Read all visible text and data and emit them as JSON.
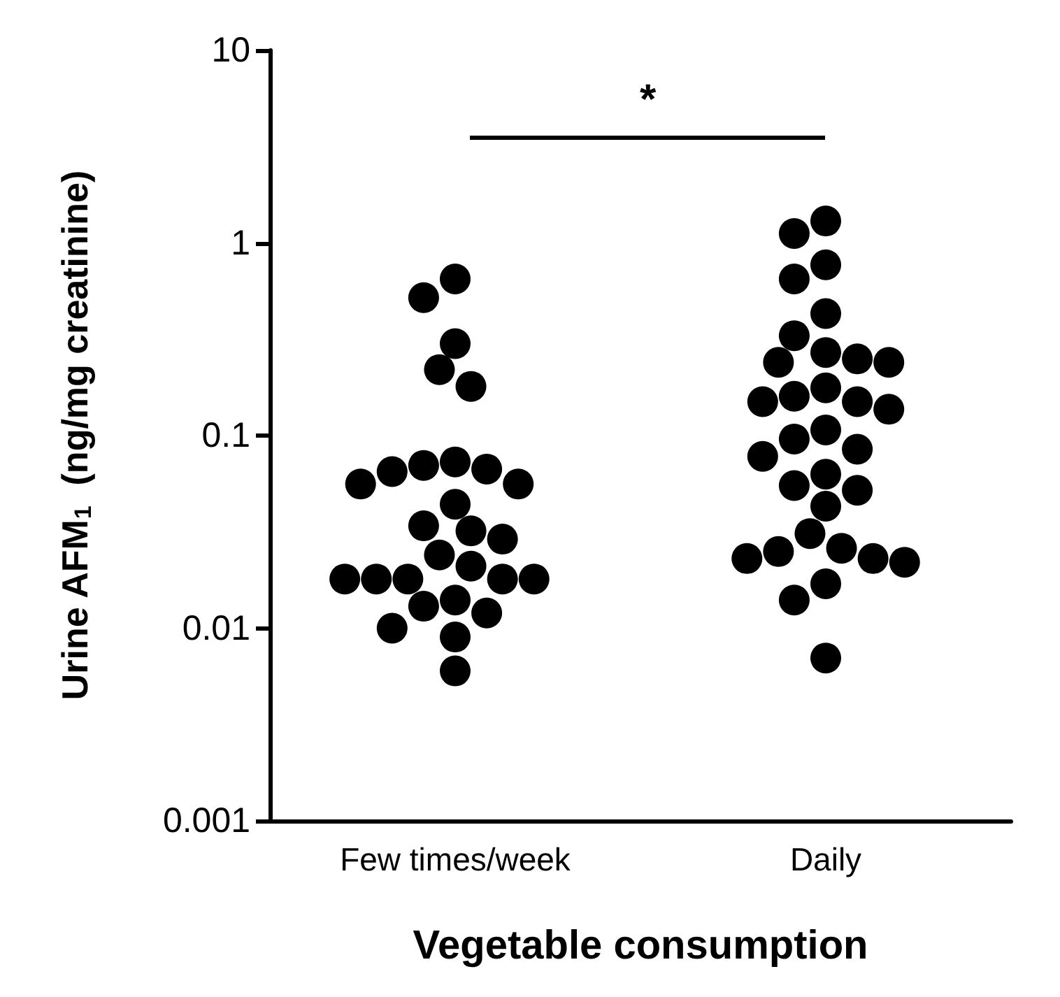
{
  "chart_data": {
    "type": "scatter",
    "xlabel": "Vegetable consumption",
    "ylabel": "Urine AFM$_{1}$  (ng/mg creatinine)",
    "categories": [
      "Few times/week",
      "Daily"
    ],
    "log": "y",
    "ylim": [
      0.001,
      10
    ],
    "yticks": [
      0.001,
      0.01,
      0.1,
      1,
      10
    ],
    "grid": false,
    "marker": "circle",
    "annotations": [
      "*"
    ],
    "series": [
      {
        "color": "#000000",
        "x": [
          "Few times/week",
          "Few times/week",
          "Few times/week",
          "Few times/week",
          "Few times/week",
          "Few times/week",
          "Few times/week",
          "Few times/week",
          "Few times/week",
          "Few times/week",
          "Few times/week",
          "Few times/week",
          "Few times/week",
          "Few times/week",
          "Few times/week",
          "Few times/week",
          "Few times/week",
          "Few times/week",
          "Few times/week",
          "Few times/week",
          "Few times/week",
          "Few times/week",
          "Few times/week",
          "Few times/week",
          "Few times/week",
          "Few times/week",
          "Few times/week",
          "Few times/week"
        ],
        "values": [
          0.65,
          0.52,
          0.3,
          0.22,
          0.18,
          0.073,
          0.067,
          0.065,
          0.07,
          0.056,
          0.056,
          0.044,
          0.032,
          0.029,
          0.034,
          0.024,
          0.021,
          0.018,
          0.018,
          0.018,
          0.018,
          0.018,
          0.014,
          0.013,
          0.012,
          0.01,
          0.009,
          0.006
        ]
      },
      {
        "color": "#000000",
        "x": [
          "Daily",
          "Daily",
          "Daily",
          "Daily",
          "Daily",
          "Daily",
          "Daily",
          "Daily",
          "Daily",
          "Daily",
          "Daily",
          "Daily",
          "Daily",
          "Daily",
          "Daily",
          "Daily",
          "Daily",
          "Daily",
          "Daily",
          "Daily",
          "Daily",
          "Daily",
          "Daily",
          "Daily",
          "Daily",
          "Daily",
          "Daily",
          "Daily",
          "Daily",
          "Daily",
          "Daily",
          "Daily"
        ],
        "values": [
          1.3,
          1.12,
          0.77,
          0.65,
          0.43,
          0.33,
          0.27,
          0.25,
          0.24,
          0.24,
          0.177,
          0.16,
          0.15,
          0.15,
          0.137,
          0.107,
          0.096,
          0.085,
          0.078,
          0.063,
          0.055,
          0.052,
          0.043,
          0.031,
          0.026,
          0.025,
          0.023,
          0.023,
          0.022,
          0.017,
          0.014,
          0.007
        ]
      }
    ]
  }
}
